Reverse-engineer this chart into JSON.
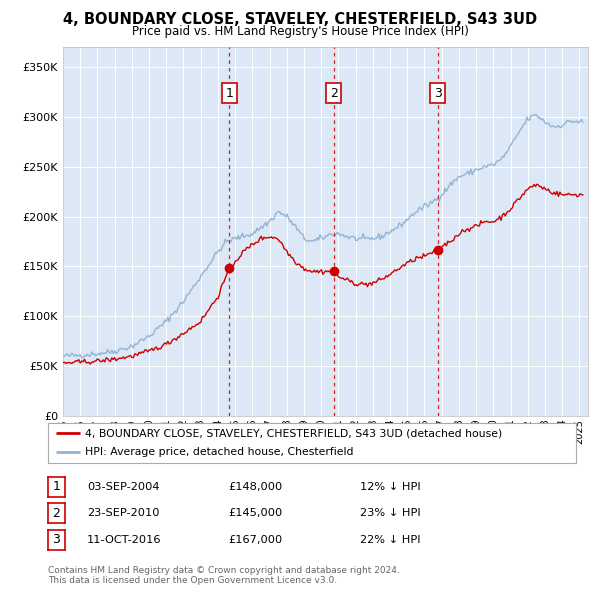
{
  "title": "4, BOUNDARY CLOSE, STAVELEY, CHESTERFIELD, S43 3UD",
  "subtitle": "Price paid vs. HM Land Registry's House Price Index (HPI)",
  "legend_line1": "4, BOUNDARY CLOSE, STAVELEY, CHESTERFIELD, S43 3UD (detached house)",
  "legend_line2": "HPI: Average price, detached house, Chesterfield",
  "footer1": "Contains HM Land Registry data © Crown copyright and database right 2024.",
  "footer2": "This data is licensed under the Open Government Licence v3.0.",
  "sale_labels": [
    "1",
    "2",
    "3"
  ],
  "sale_dates": [
    "03-SEP-2004",
    "23-SEP-2010",
    "11-OCT-2016"
  ],
  "sale_prices": [
    "£148,000",
    "£145,000",
    "£167,000"
  ],
  "sale_hpi_diff": [
    "12% ↓ HPI",
    "23% ↓ HPI",
    "22% ↓ HPI"
  ],
  "sale_years": [
    2004.67,
    2010.72,
    2016.78
  ],
  "sale_price_vals": [
    148000,
    145000,
    167000
  ],
  "hpi_color": "#92b4d4",
  "price_color": "#cc0000",
  "vline_color": "#cc0000",
  "bg_color": "#dce8f5",
  "ylim": [
    0,
    370000
  ],
  "xlim_start": 1995,
  "xlim_end": 2025.5
}
